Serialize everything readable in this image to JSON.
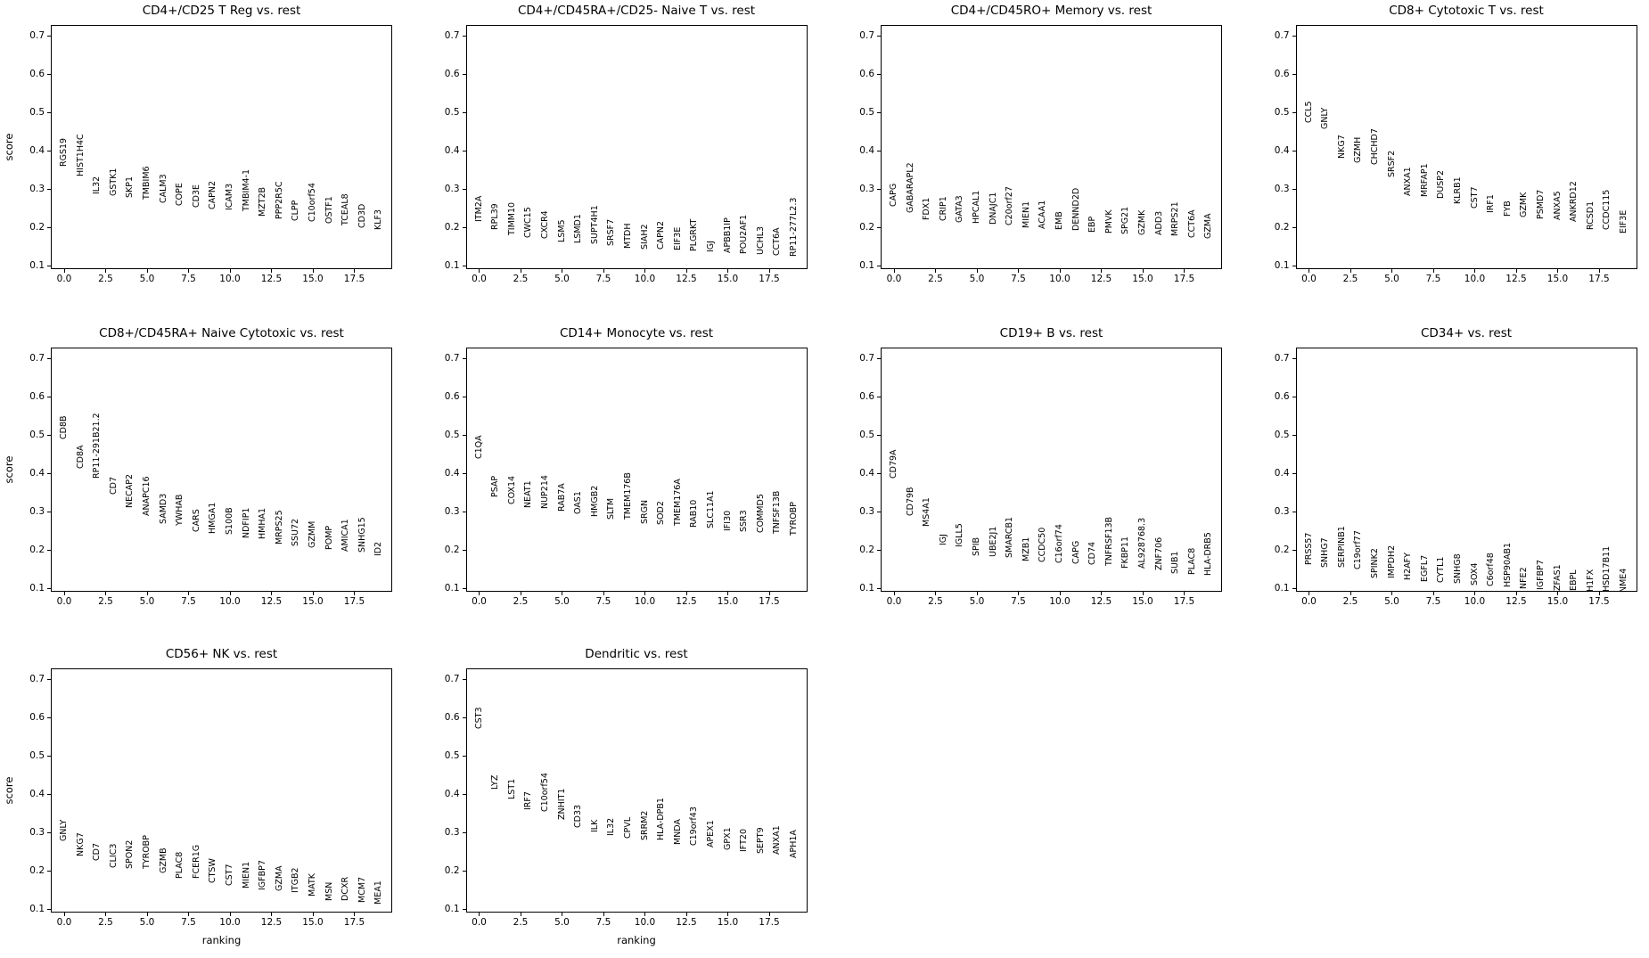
{
  "figure": {
    "xlabel": "ranking",
    "ylabel": "score",
    "background_color": "#ffffff",
    "text_color": "#000000",
    "grid": false,
    "xlim": [
      -0.85,
      19.85
    ],
    "ylim": [
      0.088,
      0.728
    ],
    "xticks": [
      0.0,
      2.5,
      5.0,
      7.5,
      10.0,
      12.5,
      15.0,
      17.5
    ],
    "yticks": [
      0.1,
      0.2,
      0.3,
      0.4,
      0.5,
      0.6,
      0.7
    ],
    "xtick_labels": [
      "0.0",
      "2.5",
      "5.0",
      "7.5",
      "10.0",
      "12.5",
      "15.0",
      "17.5"
    ],
    "ytick_labels": [
      "0.1",
      "0.2",
      "0.3",
      "0.4",
      "0.5",
      "0.6",
      "0.7"
    ]
  },
  "chart_data": [
    {
      "type": "scatter",
      "title": "CD4+/CD25 T Reg vs. rest",
      "xlabel": "ranking",
      "ylabel": "score",
      "genes": [
        "RGS19",
        "HIST1H4C",
        "IL32",
        "GSTK1",
        "SKP1",
        "TMBIM6",
        "CALM3",
        "COPE",
        "CD3E",
        "CAPN2",
        "ICAM3",
        "TMBIM4-1",
        "MZT2B",
        "PPP2R5C",
        "CLPP",
        "C10orf54",
        "OSTF1",
        "TCEAL8",
        "CD3D",
        "KLF3"
      ],
      "scores": [
        0.358,
        0.332,
        0.285,
        0.281,
        0.276,
        0.273,
        0.262,
        0.255,
        0.252,
        0.247,
        0.244,
        0.241,
        0.228,
        0.221,
        0.217,
        0.213,
        0.209,
        0.205,
        0.197,
        0.192
      ]
    },
    {
      "type": "scatter",
      "title": "CD4+/CD45RA+/CD25- Naive T vs. rest",
      "xlabel": "ranking",
      "ylabel": "score",
      "genes": [
        "ITM2A",
        "RPL39",
        "TIMM10",
        "CWC15",
        "CXCR4",
        "LSM5",
        "LSMD1",
        "SUPT4H1",
        "SRSF7",
        "MTDH",
        "SIAH2",
        "CAPN2",
        "EIF3E",
        "PLGRKT",
        "IGJ",
        "APBB1IP",
        "POU2AF1",
        "UCHL3",
        "CCT6A",
        "RP11-277L2.3"
      ],
      "scores": [
        0.214,
        0.194,
        0.18,
        0.172,
        0.169,
        0.161,
        0.158,
        0.156,
        0.151,
        0.145,
        0.143,
        0.141,
        0.14,
        0.138,
        0.134,
        0.132,
        0.13,
        0.127,
        0.125,
        0.124
      ]
    },
    {
      "type": "scatter",
      "title": "CD4+/CD45RO+ Memory vs. rest",
      "xlabel": "ranking",
      "ylabel": "score",
      "genes": [
        "CAPG",
        "GABARAPL2",
        "FDX1",
        "CRIP1",
        "GATA3",
        "HPCAL1",
        "DNAJC1",
        "C20orf27",
        "MIEN1",
        "ACAA1",
        "EMB",
        "DENND2D",
        "EBP",
        "PMVK",
        "SPG21",
        "GZMK",
        "ADD3",
        "MRPS21",
        "CCT6A",
        "GZMA"
      ],
      "scores": [
        0.253,
        0.237,
        0.218,
        0.217,
        0.212,
        0.209,
        0.207,
        0.204,
        0.198,
        0.196,
        0.193,
        0.191,
        0.185,
        0.183,
        0.182,
        0.18,
        0.178,
        0.177,
        0.172,
        0.17
      ]
    },
    {
      "type": "scatter",
      "title": "CD8+ Cytotoxic T vs. rest",
      "xlabel": "ranking",
      "ylabel": "score",
      "genes": [
        "CCL5",
        "GNLY",
        "NKG7",
        "GZMH",
        "CHCHD7",
        "SRSF2",
        "ANXA1",
        "MRFAP1",
        "DUSP2",
        "KLRB1",
        "CST7",
        "IRF1",
        "FYB",
        "GZMK",
        "PSMD7",
        "ANXA5",
        "ANKRD12",
        "RCSD1",
        "CCDC115",
        "EIF3E"
      ],
      "scores": [
        0.471,
        0.456,
        0.378,
        0.367,
        0.363,
        0.33,
        0.282,
        0.28,
        0.274,
        0.26,
        0.249,
        0.238,
        0.227,
        0.225,
        0.222,
        0.218,
        0.215,
        0.194,
        0.192,
        0.183
      ]
    },
    {
      "type": "scatter",
      "title": "CD8+/CD45RA+ Naive Cytotoxic vs. rest",
      "xlabel": "ranking",
      "ylabel": "score",
      "genes": [
        "CD8B",
        "CD8A",
        "RP11-291B21.2",
        "CD7",
        "NECAP2",
        "ANAPC16",
        "SAMD3",
        "YWHAB",
        "CARS",
        "HMGA1",
        "S100B",
        "NDFIP1",
        "HMHA1",
        "MRPS25",
        "SSU72",
        "GZMM",
        "POMP",
        "AMICA1",
        "SNHG15",
        "ID2"
      ],
      "scores": [
        0.489,
        0.411,
        0.385,
        0.345,
        0.309,
        0.289,
        0.268,
        0.262,
        0.246,
        0.243,
        0.239,
        0.23,
        0.228,
        0.213,
        0.21,
        0.204,
        0.201,
        0.196,
        0.193,
        0.184
      ]
    },
    {
      "type": "scatter",
      "title": "CD14+ Monocyte vs. rest",
      "xlabel": "ranking",
      "ylabel": "score",
      "genes": [
        "C1QA",
        "PSAP",
        "COX14",
        "NEAT1",
        "NUP214",
        "RAB7A",
        "OAS1",
        "HMGB2",
        "SLTM",
        "TMEM176B",
        "SRGN",
        "SOD2",
        "TMEM176A",
        "RAB10",
        "SLC11A1",
        "IFI30",
        "SSR3",
        "COMMD5",
        "TNFSF13B",
        "TYROBP"
      ],
      "scores": [
        0.438,
        0.337,
        0.318,
        0.309,
        0.306,
        0.3,
        0.293,
        0.287,
        0.279,
        0.278,
        0.268,
        0.264,
        0.263,
        0.257,
        0.256,
        0.248,
        0.247,
        0.245,
        0.241,
        0.237
      ]
    },
    {
      "type": "scatter",
      "title": "CD19+ B vs. rest",
      "xlabel": "ranking",
      "ylabel": "score",
      "genes": [
        "CD79A",
        "CD79B",
        "MS4A1",
        "IGJ",
        "IGLL5",
        "SPIB",
        "UBE2J1",
        "SMARCB1",
        "MZB1",
        "CCDC50",
        "C16orf74",
        "CAPG",
        "CD74",
        "TNFRSF13B",
        "FKBP11",
        "AL928768.3",
        "ZNF706",
        "SUB1",
        "PLAC8",
        "HLA-DRB5"
      ],
      "scores": [
        0.385,
        0.288,
        0.26,
        0.212,
        0.206,
        0.184,
        0.182,
        0.18,
        0.169,
        0.167,
        0.166,
        0.162,
        0.16,
        0.158,
        0.152,
        0.151,
        0.147,
        0.138,
        0.134,
        0.133
      ]
    },
    {
      "type": "scatter",
      "title": "CD34+ vs. rest",
      "xlabel": "ranking",
      "ylabel": "score",
      "genes": [
        "PRSS57",
        "SNHG7",
        "SERPINB1",
        "C19orf77",
        "SPINK2",
        "IMPDH2",
        "H2AFY",
        "EGFL7",
        "CYTL1",
        "SNHG8",
        "SOX4",
        "C6orf48",
        "HSP90AB1",
        "NFE2",
        "IGFBP7",
        "ZFAS1",
        "EBPL",
        "H1FX",
        "HSD17B11",
        "NME4"
      ],
      "scores": [
        0.161,
        0.154,
        0.153,
        0.15,
        0.126,
        0.125,
        0.122,
        0.117,
        0.113,
        0.112,
        0.108,
        0.104,
        0.102,
        0.097,
        0.095,
        0.094,
        0.092,
        0.091,
        0.09,
        0.088
      ]
    },
    {
      "type": "scatter",
      "title": "CD56+ NK vs. rest",
      "xlabel": "ranking",
      "ylabel": "score",
      "genes": [
        "GNLY",
        "NKG7",
        "CD7",
        "CLIC3",
        "SPON2",
        "TYROBP",
        "GZMB",
        "PLAC8",
        "FCER1G",
        "CTSW",
        "CST7",
        "MIEN1",
        "IGFBP7",
        "GZMA",
        "ITGB2",
        "MATK",
        "MSN",
        "DCXR",
        "MCM7",
        "MEA1"
      ],
      "scores": [
        0.277,
        0.237,
        0.226,
        0.207,
        0.205,
        0.204,
        0.193,
        0.18,
        0.178,
        0.167,
        0.16,
        0.153,
        0.149,
        0.147,
        0.142,
        0.133,
        0.121,
        0.12,
        0.116,
        0.112
      ]
    },
    {
      "type": "scatter",
      "title": "Dendritic vs. rest",
      "xlabel": "ranking",
      "ylabel": "score",
      "genes": [
        "CST3",
        "LYZ",
        "LST1",
        "IRF7",
        "C10orf54",
        "ZNHIT1",
        "CD33",
        "ILK",
        "IL32",
        "CPVL",
        "SRRM2",
        "HLA-DPB1",
        "MNDA",
        "C19orf43",
        "APEX1",
        "GPX1",
        "IFT20",
        "SEPT9",
        "ANXA1",
        "APH1A"
      ],
      "scores": [
        0.57,
        0.411,
        0.385,
        0.359,
        0.354,
        0.333,
        0.311,
        0.3,
        0.291,
        0.284,
        0.28,
        0.278,
        0.267,
        0.265,
        0.26,
        0.254,
        0.248,
        0.245,
        0.243,
        0.232
      ]
    }
  ]
}
